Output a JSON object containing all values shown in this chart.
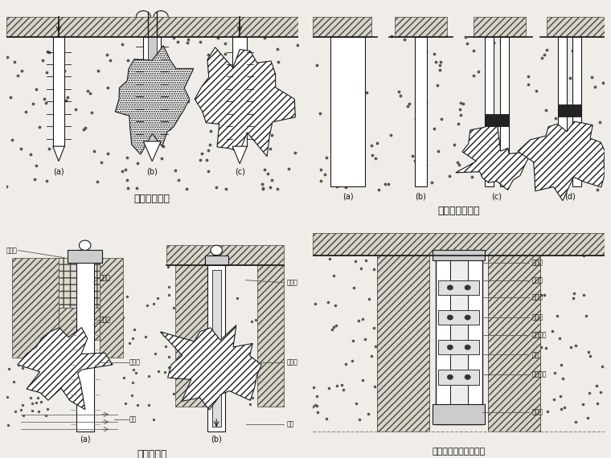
{
  "background_color": "#f0ede8",
  "line_color": "#1a1a1a",
  "labels": {
    "top_left": "打花管注浆法",
    "top_right": "套管护壁注浆法",
    "bottom_left": "边钻边灌法",
    "bottom_right": "袖阀管法的设备和构造"
  },
  "annotations_right": [
    "止浆塞",
    "钻孔壁",
    "充填料",
    "出浆孔",
    "橡皮套阀",
    "钢管",
    "溢浆花管",
    "止浆塞"
  ],
  "annotations_bl_a": [
    "护壁管",
    "混凝土",
    "粘土层",
    "灌浆体",
    "灌浆"
  ],
  "annotations_bl_b": [
    "封底塞",
    "灌浆体",
    "注塞"
  ]
}
